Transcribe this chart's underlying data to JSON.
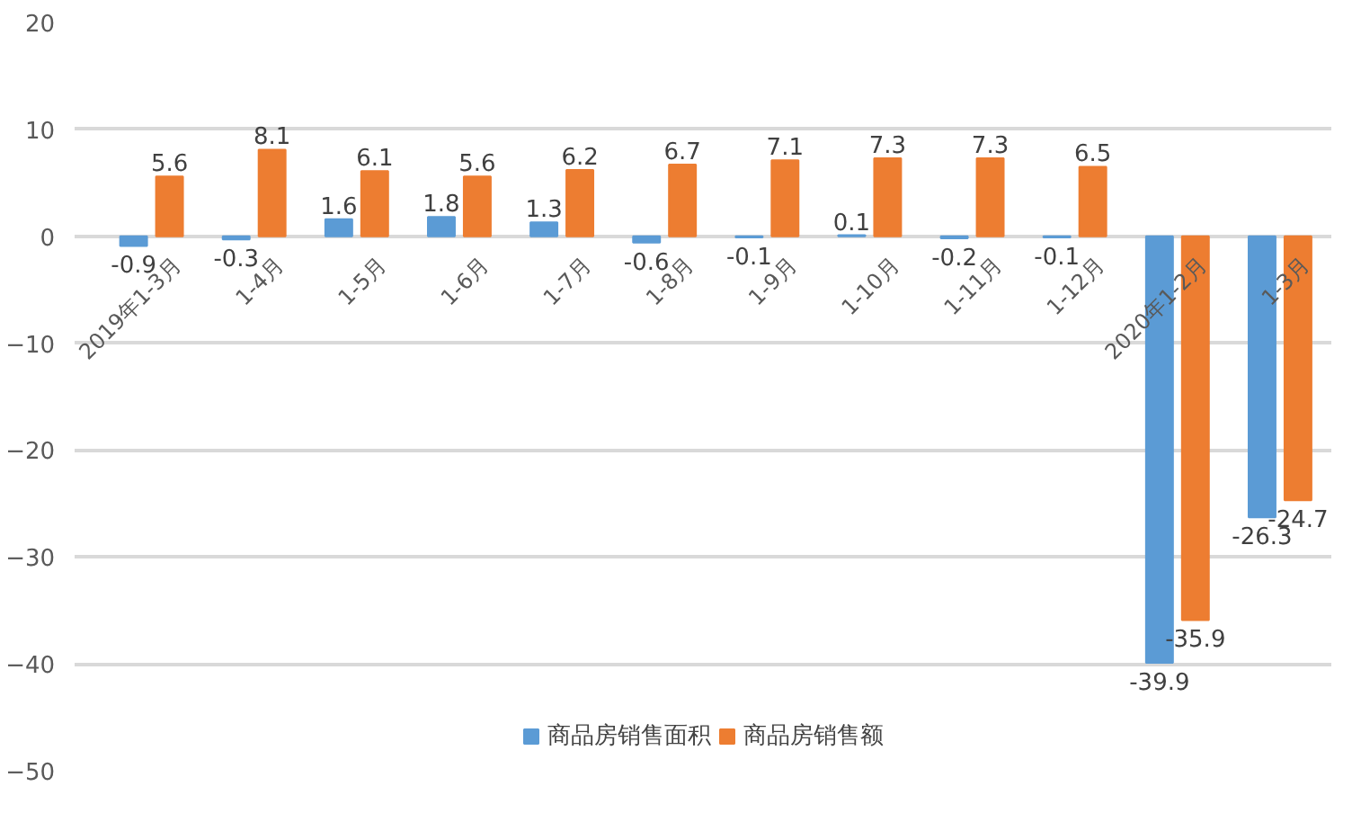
{
  "chart_data": {
    "type": "bar",
    "categories": [
      "2019年1-3月",
      "1-4月",
      "1-5月",
      "1-6月",
      "1-7月",
      "1-8月",
      "1-9月",
      "1-10月",
      "1-11月",
      "1-12月",
      "2020年1-2月",
      "1-3月"
    ],
    "series": [
      {
        "name": "商品房销售面积",
        "color": "#5b9bd5",
        "values": [
          -0.9,
          -0.3,
          1.6,
          1.8,
          1.3,
          -0.6,
          -0.1,
          0.1,
          -0.2,
          -0.1,
          -39.9,
          -26.3
        ]
      },
      {
        "name": "商品房销售额",
        "color": "#ed7d31",
        "values": [
          5.6,
          8.1,
          6.1,
          5.6,
          6.2,
          6.7,
          7.1,
          7.3,
          7.3,
          6.5,
          -35.9,
          -24.7
        ]
      }
    ],
    "ylim": [
      -50,
      20
    ],
    "yticks": [
      -50,
      -40,
      -30,
      -20,
      -10,
      0,
      10,
      20
    ],
    "grid": "y",
    "legend": "bottom",
    "data_labels": true
  }
}
